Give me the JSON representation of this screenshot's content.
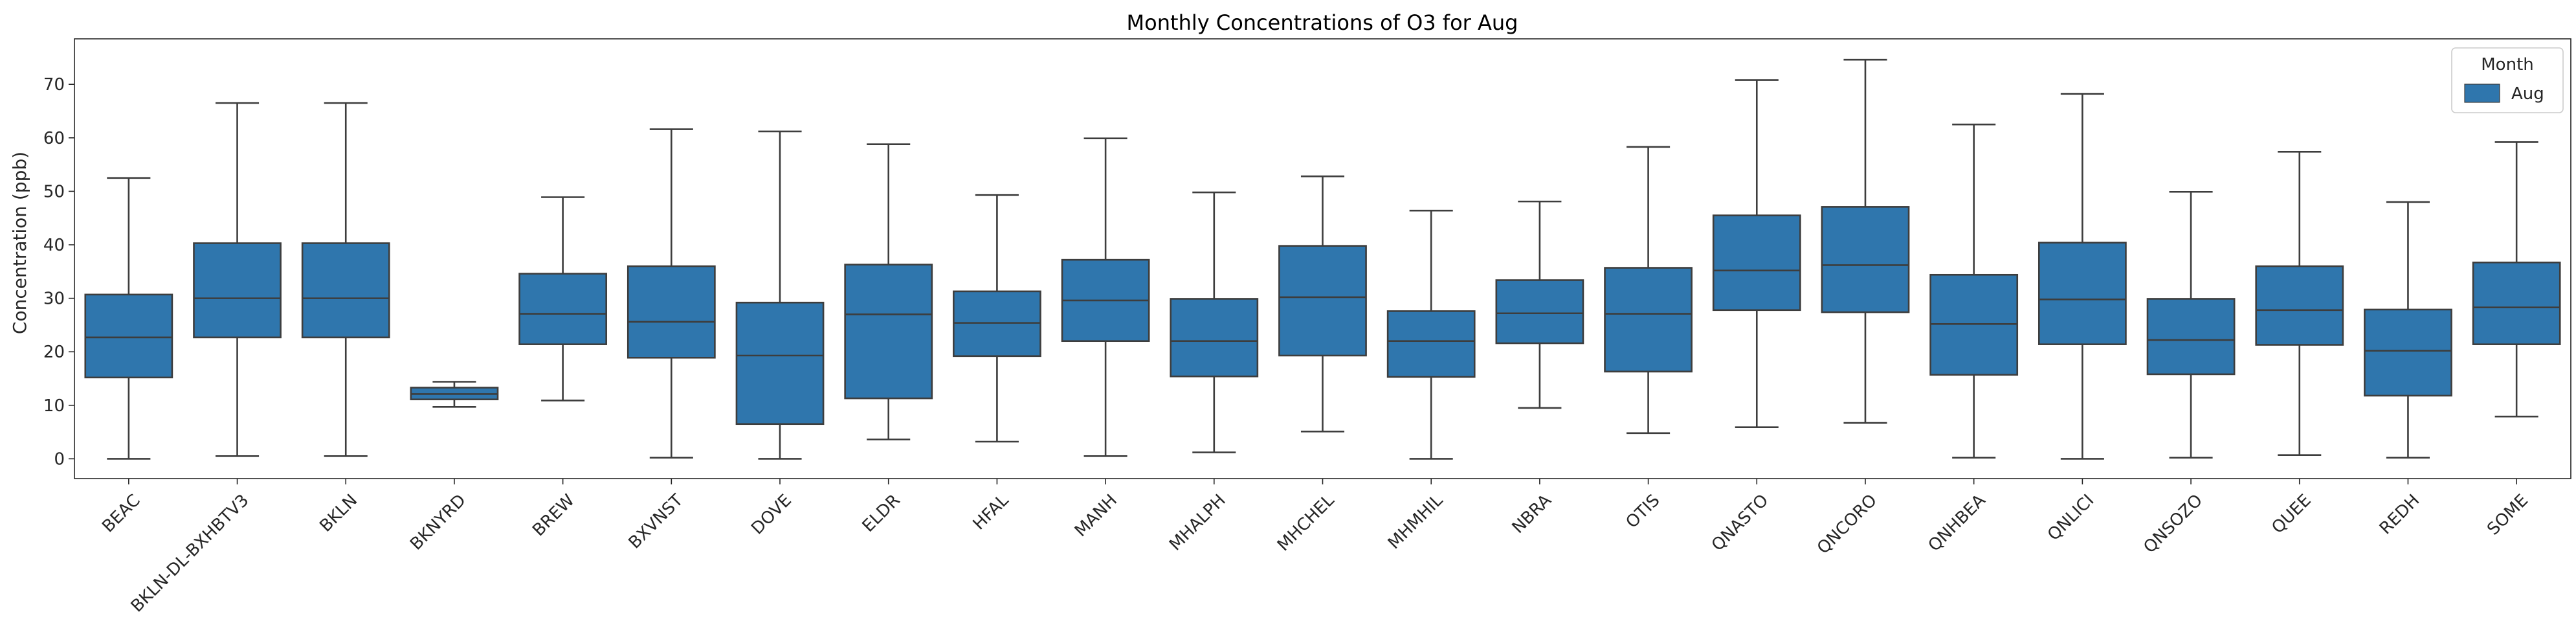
{
  "chart_data": {
    "type": "box",
    "title": "Monthly Concentrations of O3 for Aug",
    "xlabel": "",
    "ylabel": "Concentration (ppb)",
    "ylim": [
      -3.7,
      78.5
    ],
    "yticks": [
      0,
      10,
      20,
      30,
      40,
      50,
      60,
      70
    ],
    "legend": {
      "title": "Month",
      "position": "top-right",
      "entries": [
        {
          "name": "Aug",
          "color": "#2f76ad"
        }
      ]
    },
    "colors": {
      "box": "#2f76ad",
      "line": "#3d3d3d"
    },
    "categories": [
      "BEAC",
      "BKLN-DL-BXHBTV3",
      "BKLN",
      "BKNYRD",
      "BREW",
      "BXVNST",
      "DOVE",
      "ELDR",
      "HFAL",
      "MANH",
      "MHALPH",
      "MHCHEL",
      "MHMHIL",
      "NBRA",
      "OTIS",
      "QNASTO",
      "QNCORO",
      "QNHBEA",
      "QNLICI",
      "QNSOZO",
      "QUEE",
      "REDH",
      "SOME"
    ],
    "series": [
      {
        "name": "Aug",
        "boxes": [
          {
            "min": 0.0,
            "q1": 15.2,
            "median": 22.7,
            "q3": 30.7,
            "max": 52.5
          },
          {
            "min": 0.5,
            "q1": 22.7,
            "median": 30.0,
            "q3": 40.3,
            "max": 66.5
          },
          {
            "min": 0.5,
            "q1": 22.7,
            "median": 30.0,
            "q3": 40.3,
            "max": 66.5
          },
          {
            "min": 9.7,
            "q1": 11.1,
            "median": 12.1,
            "q3": 13.3,
            "max": 14.4
          },
          {
            "min": 10.9,
            "q1": 21.4,
            "median": 27.1,
            "q3": 34.6,
            "max": 48.9
          },
          {
            "min": 0.2,
            "q1": 18.9,
            "median": 25.6,
            "q3": 36.0,
            "max": 61.6
          },
          {
            "min": 0.0,
            "q1": 6.5,
            "median": 19.3,
            "q3": 29.2,
            "max": 61.2
          },
          {
            "min": 3.6,
            "q1": 11.3,
            "median": 27.0,
            "q3": 36.3,
            "max": 58.8
          },
          {
            "min": 3.2,
            "q1": 19.2,
            "median": 25.4,
            "q3": 31.3,
            "max": 49.3
          },
          {
            "min": 0.5,
            "q1": 22.0,
            "median": 29.6,
            "q3": 37.2,
            "max": 59.9
          },
          {
            "min": 1.2,
            "q1": 15.4,
            "median": 22.0,
            "q3": 29.9,
            "max": 49.8
          },
          {
            "min": 5.1,
            "q1": 19.3,
            "median": 30.2,
            "q3": 39.8,
            "max": 52.8
          },
          {
            "min": 0.0,
            "q1": 15.3,
            "median": 22.0,
            "q3": 27.6,
            "max": 46.4
          },
          {
            "min": 9.5,
            "q1": 21.6,
            "median": 27.2,
            "q3": 33.4,
            "max": 48.1
          },
          {
            "min": 4.8,
            "q1": 16.3,
            "median": 27.1,
            "q3": 35.7,
            "max": 58.3
          },
          {
            "min": 5.9,
            "q1": 27.8,
            "median": 35.2,
            "q3": 45.5,
            "max": 70.8
          },
          {
            "min": 6.7,
            "q1": 27.4,
            "median": 36.2,
            "q3": 47.1,
            "max": 74.6
          },
          {
            "min": 0.2,
            "q1": 15.7,
            "median": 25.2,
            "q3": 34.4,
            "max": 62.5
          },
          {
            "min": 0.0,
            "q1": 21.4,
            "median": 29.8,
            "q3": 40.4,
            "max": 68.2
          },
          {
            "min": 0.2,
            "q1": 15.8,
            "median": 22.2,
            "q3": 29.9,
            "max": 49.9
          },
          {
            "min": 0.7,
            "q1": 21.3,
            "median": 27.8,
            "q3": 36.0,
            "max": 57.4
          },
          {
            "min": 0.2,
            "q1": 11.8,
            "median": 20.2,
            "q3": 27.9,
            "max": 48.0
          },
          {
            "min": 7.9,
            "q1": 21.4,
            "median": 28.3,
            "q3": 36.7,
            "max": 59.2
          }
        ]
      }
    ]
  }
}
